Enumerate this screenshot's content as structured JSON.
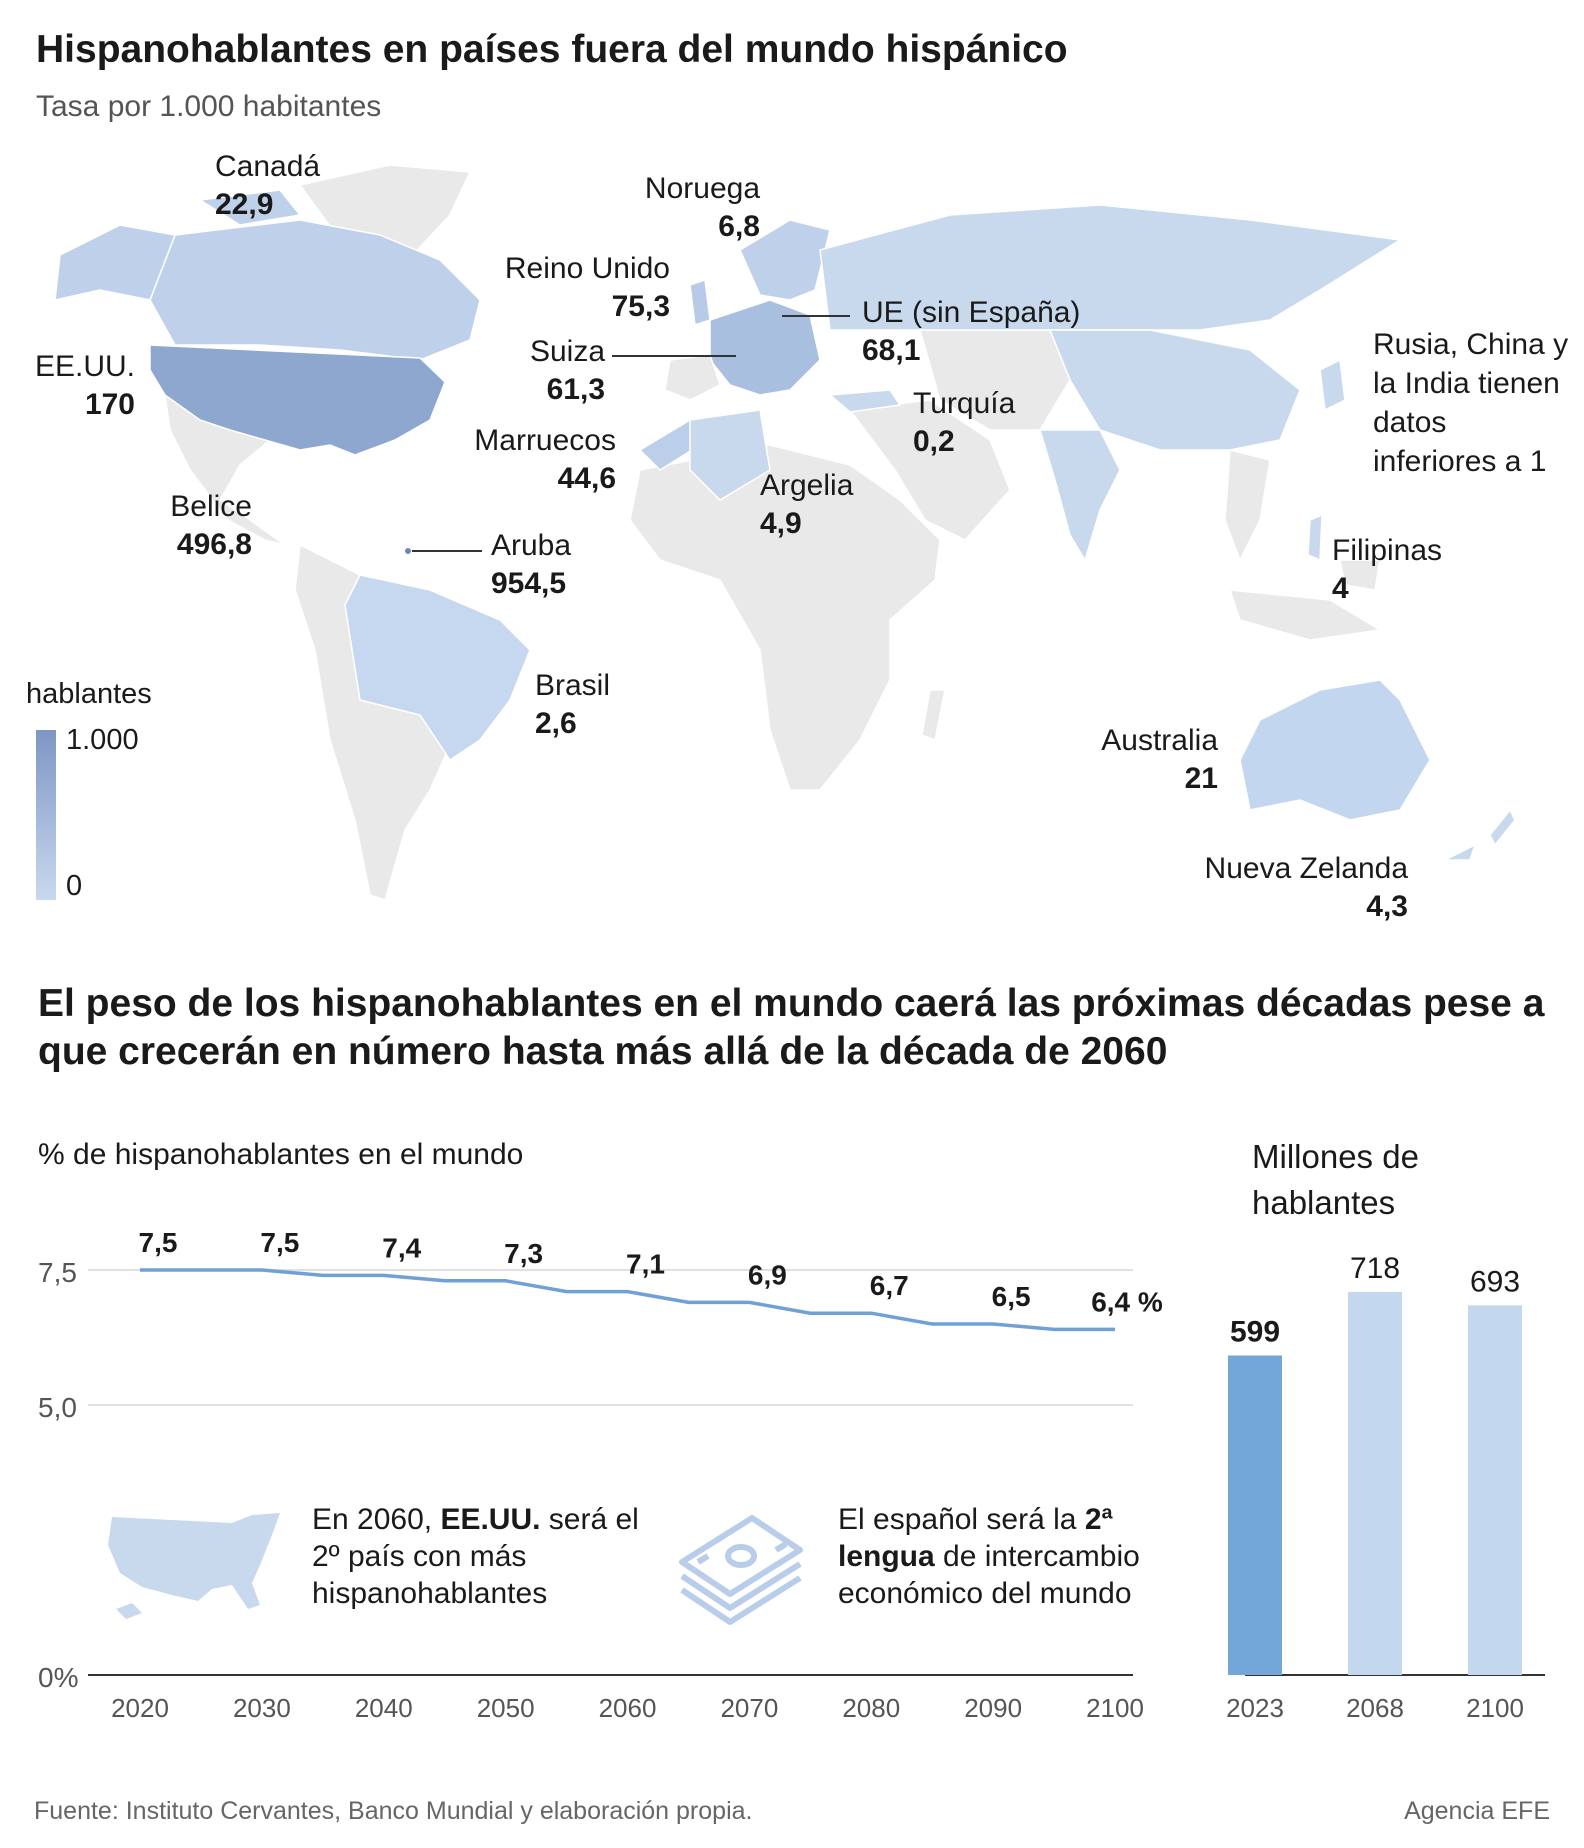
{
  "map_section": {
    "title": "Hispanohablantes en países fuera del mundo hispánico",
    "subtitle": "Tasa por 1.000 habitantes",
    "legend": {
      "title": "hablantes",
      "max": "1.000",
      "min": "0",
      "color_high": "#7d96c4",
      "color_low": "#c8d9ee"
    },
    "note": "Rusia, China y la India tienen datos inferiores a 1",
    "countries": [
      {
        "name": "Canadá",
        "value": "22,9"
      },
      {
        "name": "Noruega",
        "value": "6,8"
      },
      {
        "name": "Reino Unido",
        "value": "75,3"
      },
      {
        "name": "UE (sin España)",
        "value": "68,1"
      },
      {
        "name": "Suiza",
        "value": "61,3"
      },
      {
        "name": "EE.UU.",
        "value": "170"
      },
      {
        "name": "Turquía",
        "value": "0,2"
      },
      {
        "name": "Marruecos",
        "value": "44,6"
      },
      {
        "name": "Argelia",
        "value": "4,9"
      },
      {
        "name": "Belice",
        "value": "496,8"
      },
      {
        "name": "Aruba",
        "value": "954,5"
      },
      {
        "name": "Filipinas",
        "value": "4"
      },
      {
        "name": "Brasil",
        "value": "2,6"
      },
      {
        "name": "Australia",
        "value": "21"
      },
      {
        "name": "Nueva Zelanda",
        "value": "4,3"
      }
    ]
  },
  "trend_section": {
    "title": "El peso de los hispanohablantes en el mundo caerá las próximas décadas pese a que crecerán en número hasta más allá de la década de 2060",
    "line_label": "% de hispanohablantes en el mundo",
    "bar_label": "Millones de hablantes",
    "info_usa": {
      "pre": "En 2060, ",
      "bold": "EE.UU.",
      "post": " será el 2º país con más hispanohablantes"
    },
    "info_econ": {
      "pre": "El español será la ",
      "bold1": "2ª",
      "bold2": "lengua",
      "post": " de intercambio económico del mundo"
    }
  },
  "chart_data": [
    {
      "type": "line",
      "title": "% de hispanohablantes en el mundo",
      "x": [
        "2020",
        "2030",
        "2040",
        "2050",
        "2060",
        "2070",
        "2080",
        "2090",
        "2100"
      ],
      "values": [
        7.5,
        7.5,
        7.4,
        7.3,
        7.1,
        6.9,
        6.7,
        6.5,
        6.4
      ],
      "value_labels": [
        "7,5",
        "7,5",
        "7,4",
        "7,3",
        "7,1",
        "6,9",
        "6,7",
        "6,5",
        "6,4 %"
      ],
      "y_ticks": [
        "0%",
        "5,0",
        "7,5"
      ],
      "ylim": [
        0,
        7.5
      ],
      "color": "#6fa0d6"
    },
    {
      "type": "bar",
      "title": "Millones de hablantes",
      "categories": [
        "2023",
        "2068",
        "2100"
      ],
      "values": [
        599,
        718,
        693
      ],
      "highlight_color": "#74a7d9",
      "color": "#c3d7ee"
    }
  ],
  "footer": {
    "source": "Fuente: Instituto Cervantes, Banco Mundial y elaboración propia.",
    "credit": "Agencia EFE"
  }
}
